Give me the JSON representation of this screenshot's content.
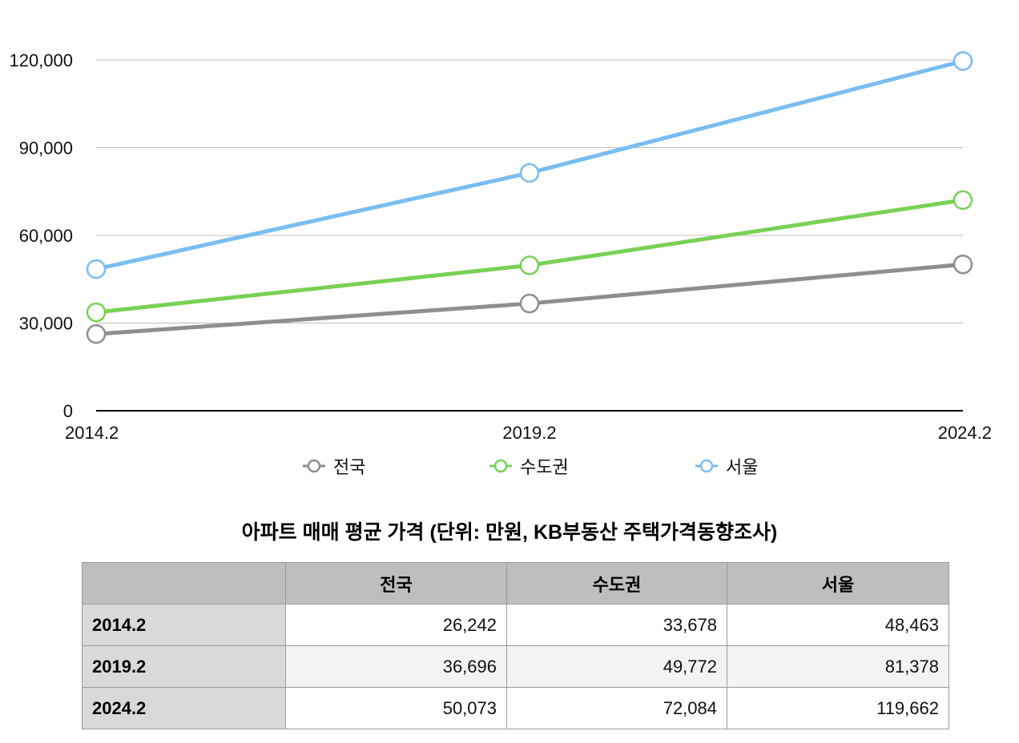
{
  "chart_data": {
    "type": "line",
    "categories": [
      "2014.2",
      "2019.2",
      "2024.2"
    ],
    "series": [
      {
        "name": "전국",
        "values": [
          26242,
          36696,
          50073
        ],
        "color": "#8e8e8e"
      },
      {
        "name": "수도권",
        "values": [
          33678,
          49772,
          72084
        ],
        "color": "#78d155"
      },
      {
        "name": "서울",
        "values": [
          48463,
          81378,
          119662
        ],
        "color": "#79bdf2"
      }
    ],
    "ylim": [
      0,
      120000
    ],
    "yticks": [
      0,
      30000,
      60000,
      90000,
      120000
    ],
    "ytick_labels": [
      "0",
      "30,000",
      "60,000",
      "90,000",
      "120,000"
    ],
    "grid": true,
    "legend": "bottom"
  },
  "table": {
    "title": "아파트 매매 평균 가격 (단위: 만원, KB부동산 주택가격동향조사)",
    "columns": [
      "",
      "전국",
      "수도권",
      "서울"
    ],
    "rows": [
      {
        "label": "2014.2",
        "values": [
          "26,242",
          "33,678",
          "48,463"
        ]
      },
      {
        "label": "2019.2",
        "values": [
          "36,696",
          "49,772",
          "81,378"
        ]
      },
      {
        "label": "2024.2",
        "values": [
          "50,073",
          "72,084",
          "119,662"
        ]
      }
    ]
  }
}
